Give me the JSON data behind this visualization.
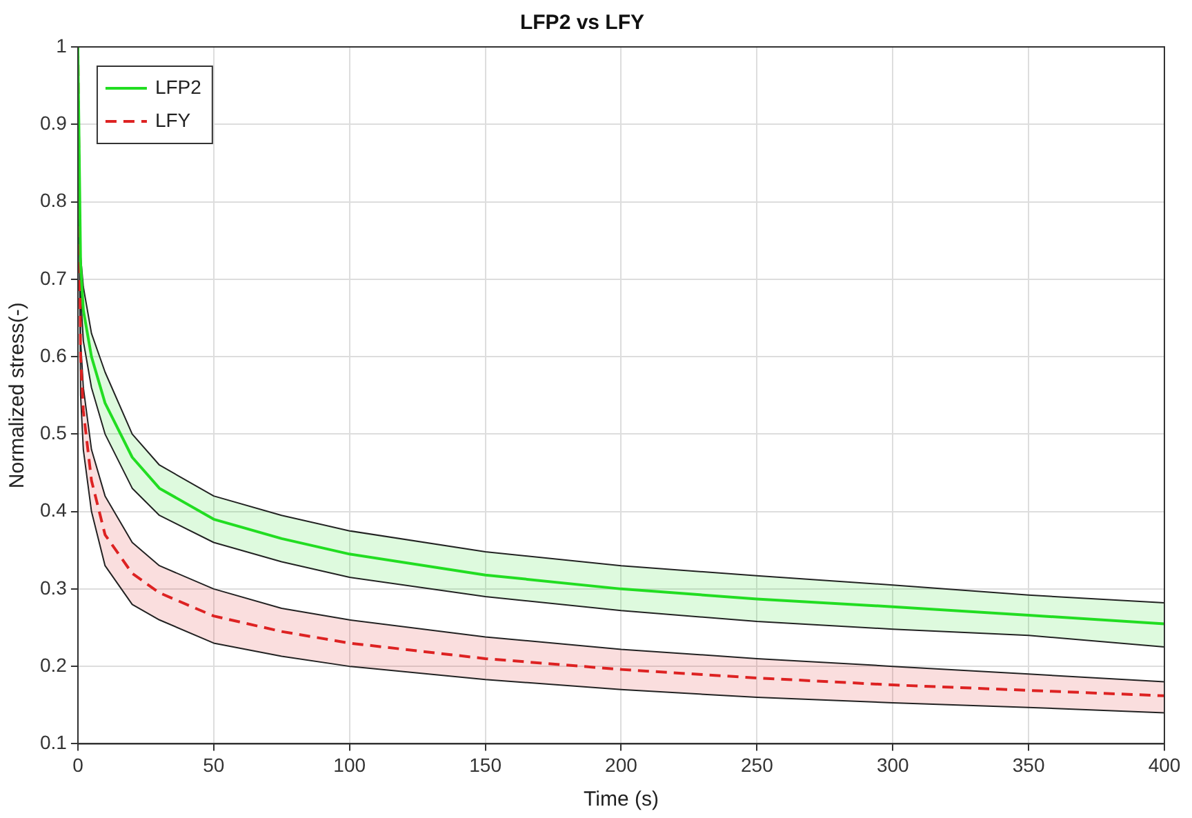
{
  "chart_data": {
    "type": "line",
    "title": "LFP2 vs LFY",
    "xlabel": "Time (s)",
    "ylabel": "Normalized stress(-)",
    "x": [
      0,
      1,
      2,
      5,
      10,
      20,
      30,
      50,
      75,
      100,
      150,
      200,
      250,
      300,
      350,
      400
    ],
    "series": [
      {
        "name": "LFP2",
        "color": "#22dd22",
        "line_style": "solid",
        "values": [
          1.0,
          0.72,
          0.66,
          0.6,
          0.54,
          0.47,
          0.43,
          0.39,
          0.365,
          0.345,
          0.318,
          0.3,
          0.287,
          0.277,
          0.266,
          0.255
        ],
        "upper": [
          1.0,
          0.73,
          0.69,
          0.63,
          0.58,
          0.5,
          0.46,
          0.42,
          0.395,
          0.375,
          0.348,
          0.33,
          0.317,
          0.305,
          0.292,
          0.282
        ],
        "lower": [
          1.0,
          0.68,
          0.62,
          0.56,
          0.5,
          0.43,
          0.395,
          0.36,
          0.335,
          0.315,
          0.29,
          0.272,
          0.258,
          0.248,
          0.24,
          0.225
        ]
      },
      {
        "name": "LFY",
        "color": "#dd2222",
        "line_style": "dashed",
        "values": [
          1.0,
          0.6,
          0.53,
          0.44,
          0.37,
          0.32,
          0.295,
          0.265,
          0.245,
          0.23,
          0.21,
          0.196,
          0.185,
          0.176,
          0.169,
          0.162
        ],
        "upper": [
          1.0,
          0.62,
          0.56,
          0.48,
          0.42,
          0.36,
          0.33,
          0.3,
          0.275,
          0.26,
          0.238,
          0.222,
          0.21,
          0.2,
          0.19,
          0.18
        ],
        "lower": [
          1.0,
          0.55,
          0.48,
          0.4,
          0.33,
          0.28,
          0.26,
          0.23,
          0.213,
          0.2,
          0.183,
          0.17,
          0.16,
          0.153,
          0.147,
          0.14
        ]
      }
    ],
    "xlim": [
      0,
      400
    ],
    "xticks": [
      0,
      50,
      100,
      150,
      200,
      250,
      300,
      350,
      400
    ],
    "ylim": [
      0.1,
      1
    ],
    "yticks": [
      0.1,
      0.2,
      0.3,
      0.4,
      0.5,
      0.6,
      0.7,
      0.8,
      0.9,
      1
    ],
    "grid": true,
    "legend": "top left",
    "marker": "none"
  }
}
